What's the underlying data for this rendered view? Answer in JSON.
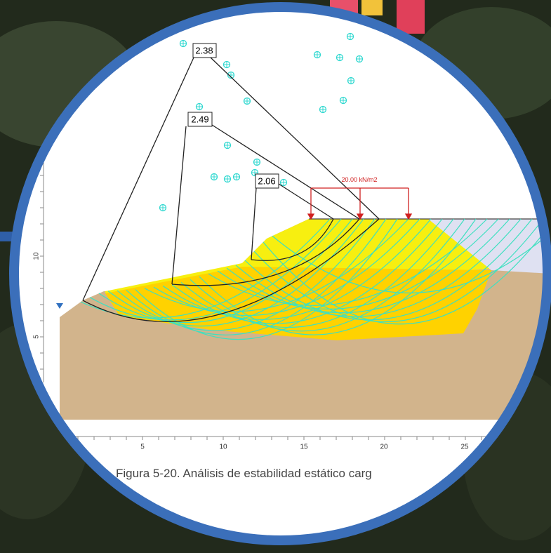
{
  "figure": {
    "safety_factors": [
      "2.38",
      "2.49",
      "2.06"
    ],
    "load_label": "20.00 kN/m2",
    "x_ticks": [
      "5",
      "10",
      "15",
      "20",
      "25"
    ],
    "y_ticks": [
      "10",
      "5"
    ],
    "caption": "Figura 5-20. Análisis de estabilidad estático carg"
  }
}
